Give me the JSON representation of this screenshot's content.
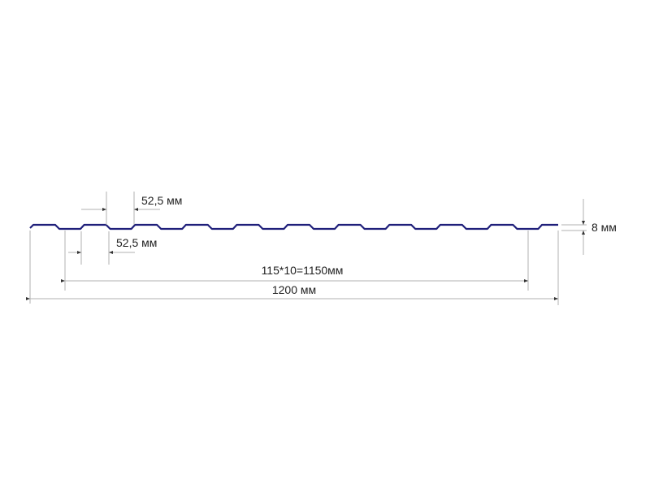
{
  "labels": {
    "pitch_top": "52,5 мм",
    "pitch_bottom": "52,5 мм",
    "height": "8 мм",
    "working_width": "115*10=1150мм",
    "total_width": "1200 мм"
  },
  "colors": {
    "profile": "#1f1f7a",
    "dimension_lines": "#b0b0b0",
    "text": "#222222"
  }
}
